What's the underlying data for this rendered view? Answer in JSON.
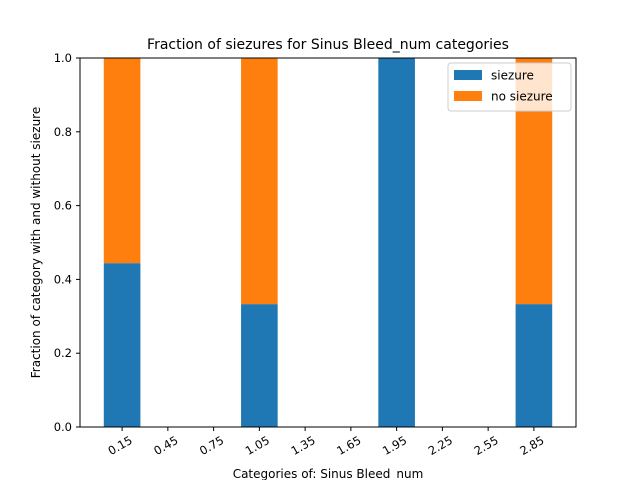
{
  "chart_data": {
    "type": "bar",
    "stacked": true,
    "title": "Fraction of siezures for Sinus Bleed_num categories",
    "xlabel": "Categories of: Sinus Bleed_num",
    "ylabel": "Fraction of category with and without siezure",
    "x_ticks": [
      "0.15",
      "0.45",
      "0.75",
      "1.05",
      "1.35",
      "1.65",
      "1.95",
      "2.25",
      "2.55",
      "2.85"
    ],
    "y_ticks": [
      "0.0",
      "0.2",
      "0.4",
      "0.6",
      "0.8",
      "1.0"
    ],
    "ylim": [
      0,
      1
    ],
    "grid": false,
    "legend_position": "top-right",
    "x": [
      0.15,
      1.05,
      1.95,
      2.85
    ],
    "series": [
      {
        "name": "siezure",
        "color": "#1f77b4",
        "values": [
          0.444,
          0.333,
          1.0,
          0.333
        ]
      },
      {
        "name": "no siezure",
        "color": "#ff7f0e",
        "values": [
          0.556,
          0.667,
          0.0,
          0.667
        ]
      }
    ]
  }
}
